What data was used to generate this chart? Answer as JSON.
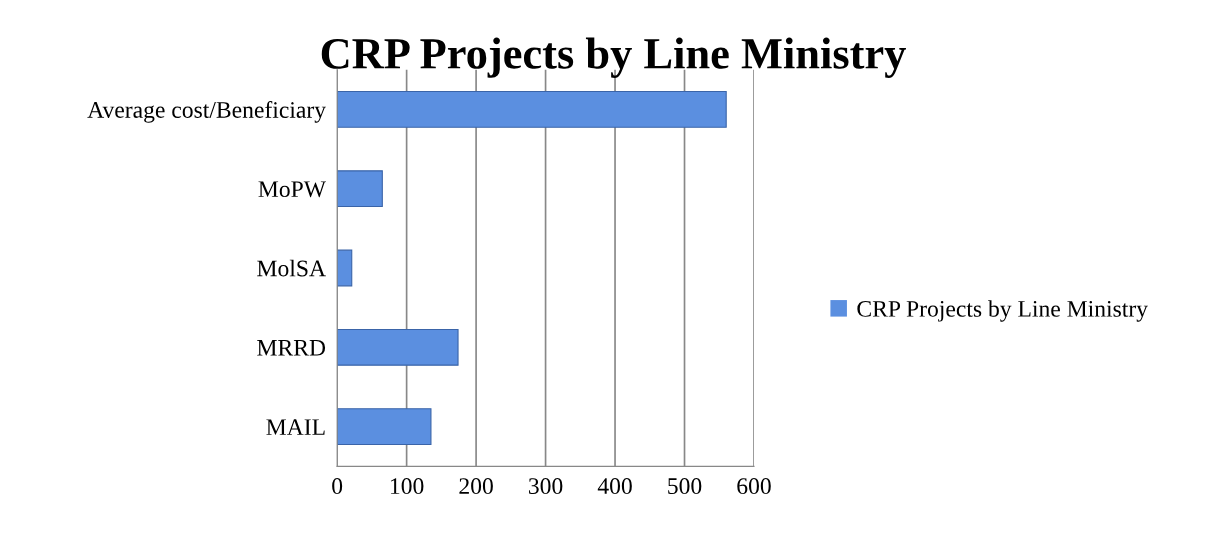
{
  "chart_data": {
    "type": "bar",
    "orientation": "horizontal",
    "title": "CRP Projects by Line Ministry",
    "categories": [
      "Average cost/Beneficiary",
      "MoPW",
      "MolSA",
      "MRRD",
      "MAIL"
    ],
    "series": [
      {
        "name": "CRP Projects by Line Ministry",
        "color": "#5b8fe0",
        "values": [
          560,
          65,
          21,
          174,
          135
        ]
      }
    ],
    "xlim": [
      0,
      600
    ],
    "xticks": [
      0,
      100,
      200,
      300,
      400,
      500,
      600
    ],
    "grid": "x",
    "legend": "right"
  }
}
